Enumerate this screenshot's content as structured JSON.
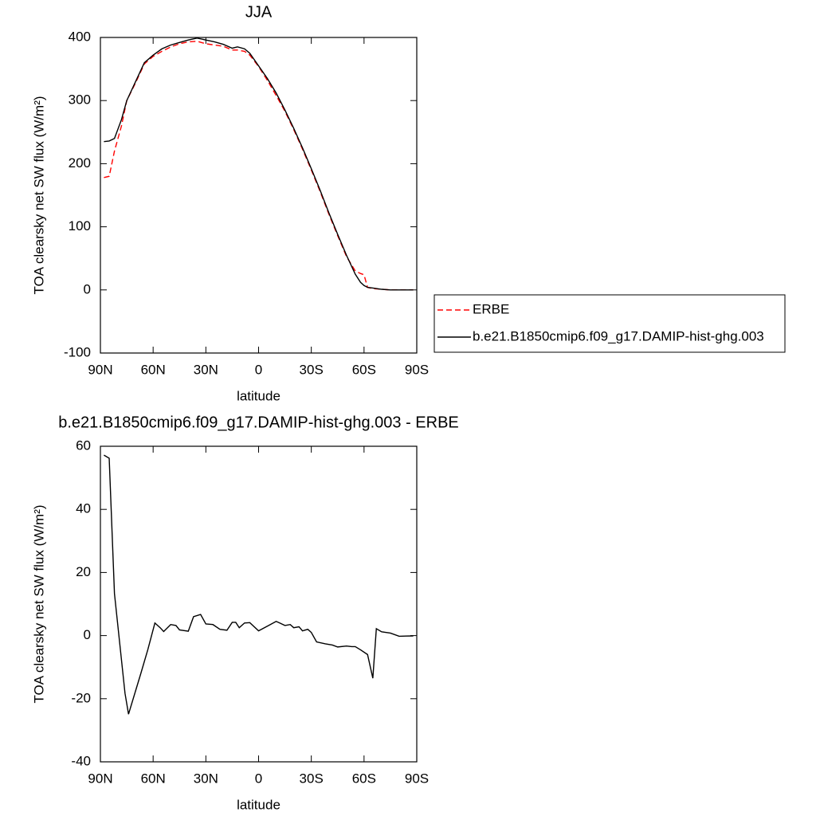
{
  "chart_data": [
    {
      "type": "line",
      "title": "JJA",
      "xlabel": "latitude",
      "ylabel": "TOA clearsky net SW flux (W/m²)",
      "xlim": [
        90,
        -90
      ],
      "ylim": [
        -100,
        400
      ],
      "xticks": [
        {
          "value": 90,
          "label": "90N"
        },
        {
          "value": 60,
          "label": "60N"
        },
        {
          "value": 30,
          "label": "30N"
        },
        0,
        {
          "value": -30,
          "label": "30S"
        },
        {
          "value": -60,
          "label": "60S"
        },
        {
          "value": -90,
          "label": "90S"
        }
      ],
      "yticks": [
        -100,
        0,
        100,
        200,
        300,
        400
      ],
      "legend": "outside-right",
      "x": [
        88,
        85,
        82,
        78,
        75,
        70,
        65,
        60,
        55,
        50,
        45,
        40,
        35,
        30,
        25,
        20,
        15,
        12,
        8,
        5,
        0,
        -5,
        -10,
        -15,
        -20,
        -25,
        -30,
        -35,
        -40,
        -45,
        -50,
        -55,
        -58,
        -60,
        -62,
        -65,
        -70,
        -75,
        -80,
        -88
      ],
      "series": [
        {
          "name": "ERBE",
          "color": "#ff0000",
          "dash": true,
          "values": [
            178,
            180,
            220,
            260,
            300,
            328,
            358,
            370,
            378,
            385,
            390,
            393,
            394,
            390,
            388,
            386,
            380,
            380,
            378,
            372,
            354,
            332,
            308,
            283,
            254,
            223,
            190,
            156,
            120,
            86,
            53,
            30,
            26,
            24,
            4,
            2,
            1,
            0,
            0,
            0
          ]
        },
        {
          "name": "b.e21.B1850cmip6.f09_g17.DAMIP-hist-ghg.003",
          "color": "#000000",
          "dash": false,
          "values": [
            235,
            236,
            240,
            270,
            300,
            330,
            360,
            372,
            382,
            388,
            392,
            396,
            399,
            396,
            393,
            389,
            383,
            385,
            382,
            375,
            355,
            335,
            312,
            285,
            256,
            225,
            192,
            158,
            122,
            88,
            55,
            25,
            12,
            7,
            4,
            3,
            1,
            0,
            0,
            0
          ]
        }
      ]
    },
    {
      "type": "line",
      "title": "b.e21.B1850cmip6.f09_g17.DAMIP-hist-ghg.003 - ERBE",
      "xlabel": "latitude",
      "ylabel": "TOA clearsky net SW flux (W/m²)",
      "xlim": [
        90,
        -90
      ],
      "ylim": [
        -40,
        60
      ],
      "xticks": [
        {
          "value": 90,
          "label": "90N"
        },
        {
          "value": 60,
          "label": "60N"
        },
        {
          "value": 30,
          "label": "30N"
        },
        0,
        {
          "value": -30,
          "label": "30S"
        },
        {
          "value": -60,
          "label": "60S"
        },
        {
          "value": -90,
          "label": "90S"
        }
      ],
      "yticks": [
        -40,
        -20,
        0,
        20,
        40,
        60
      ],
      "color": "#000000",
      "x": [
        88,
        85,
        82,
        76,
        74,
        67,
        63,
        59,
        56,
        54,
        50,
        47,
        45,
        40,
        37,
        33,
        30,
        26,
        22,
        18,
        15,
        13,
        11,
        8,
        5,
        0,
        -5,
        -10,
        -12,
        -15,
        -18,
        -20,
        -23,
        -25,
        -28,
        -30,
        -33,
        -38,
        -42,
        -45,
        -50,
        -53,
        -55,
        -58,
        -62,
        -65,
        -67,
        -70,
        -75,
        -80,
        -88
      ],
      "values": [
        57.2,
        56.2,
        13.3,
        -18.3,
        -24.9,
        -12,
        -4.4,
        4,
        2.5,
        1.3,
        3.5,
        3.2,
        1.8,
        1.4,
        6,
        6.7,
        3.7,
        3.5,
        2,
        1.7,
        4.2,
        4.2,
        2.5,
        4,
        4.1,
        1.5,
        3,
        4.5,
        4,
        3.2,
        3.5,
        2.5,
        2.8,
        1.5,
        2,
        1,
        -2,
        -2.6,
        -3,
        -3.6,
        -3.3,
        -3.5,
        -3.5,
        -4.5,
        -6,
        -13.5,
        2.2,
        1.2,
        0.8,
        -0.2,
        -0.1
      ]
    }
  ]
}
